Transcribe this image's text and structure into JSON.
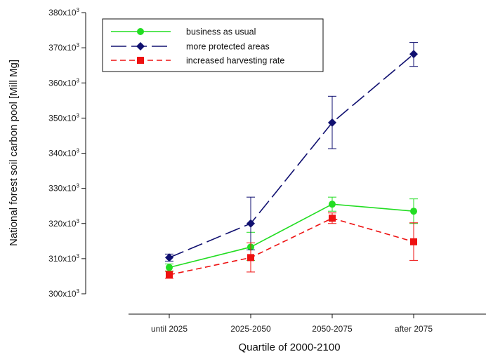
{
  "chart_data": {
    "type": "line",
    "title": "",
    "xlabel": "Quartile of 2000-2100",
    "ylabel": "National forest soil carbon pool [Mill Mg]",
    "categories": [
      "until 2025",
      "2025-2050",
      "2050-2075",
      "after 2075"
    ],
    "ylim": [
      300000,
      380000
    ],
    "yticks": [
      300000,
      310000,
      320000,
      330000,
      340000,
      350000,
      360000,
      370000,
      380000
    ],
    "ytick_labels": [
      {
        "base": "300x10",
        "exp": "3"
      },
      {
        "base": "310x10",
        "exp": "3"
      },
      {
        "base": "320x10",
        "exp": "3"
      },
      {
        "base": "330x10",
        "exp": "3"
      },
      {
        "base": "340x10",
        "exp": "3"
      },
      {
        "base": "350x10",
        "exp": "3"
      },
      {
        "base": "360x10",
        "exp": "3"
      },
      {
        "base": "370x10",
        "exp": "3"
      },
      {
        "base": "380x10",
        "exp": "3"
      }
    ],
    "legend_position": "top-left",
    "grid": false,
    "series": [
      {
        "name": "business as usual",
        "color": "#22dd22",
        "marker": "circle",
        "dash": "solid",
        "values": [
          307500,
          313300,
          325500,
          323500
        ],
        "err_low": [
          306500,
          309500,
          323500,
          320000
        ],
        "err_high": [
          308500,
          317500,
          327500,
          327000
        ]
      },
      {
        "name": "more protected areas",
        "color": "#101070",
        "marker": "diamond",
        "dash": "long-dash",
        "values": [
          310300,
          320000,
          348700,
          368200
        ],
        "err_low": [
          309300,
          312500,
          341300,
          364700
        ],
        "err_high": [
          311300,
          327500,
          356200,
          371500
        ]
      },
      {
        "name": "increased harvesting rate",
        "color": "#ee1111",
        "marker": "square",
        "dash": "short-dash",
        "values": [
          305400,
          310300,
          321500,
          314800
        ],
        "err_low": [
          304400,
          306200,
          320000,
          309500
        ],
        "err_high": [
          306400,
          314500,
          323000,
          320200
        ]
      }
    ]
  }
}
